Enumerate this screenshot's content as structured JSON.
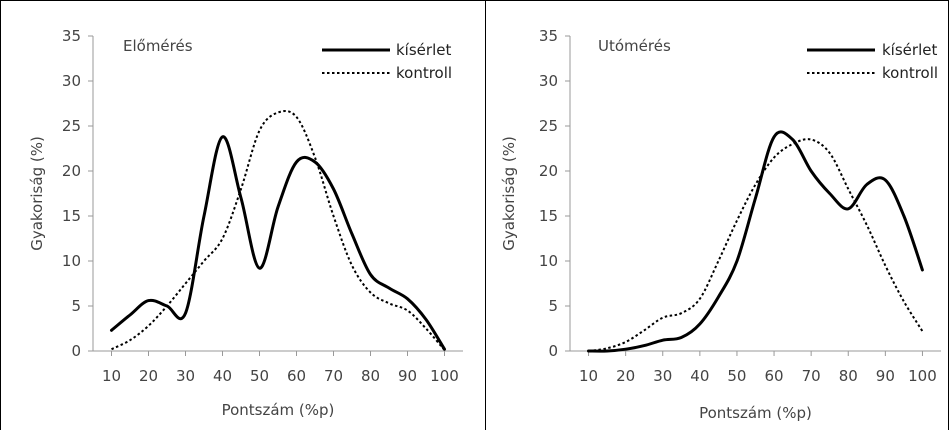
{
  "chart_data": [
    {
      "type": "line",
      "title": "Előmérés",
      "xlabel": "Pontszám (%p)",
      "ylabel": "Gyakoriság (%)",
      "xlim": [
        5,
        105
      ],
      "ylim": [
        0,
        35
      ],
      "x_ticks": [
        "10",
        "20",
        "30",
        "40",
        "50",
        "60",
        "70",
        "80",
        "90",
        "100"
      ],
      "y_ticks": [
        "0",
        "5",
        "10",
        "15",
        "20",
        "25",
        "30",
        "35"
      ],
      "grid": false,
      "legend_position": "top-right",
      "series": [
        {
          "name": "kísérlet",
          "style": "solid",
          "color": "#000000",
          "points": [
            [
              10,
              2.3
            ],
            [
              15,
              4.0
            ],
            [
              20,
              5.6
            ],
            [
              25,
              5.0
            ],
            [
              30,
              4.2
            ],
            [
              35,
              15.0
            ],
            [
              40,
              23.8
            ],
            [
              45,
              17.0
            ],
            [
              50,
              9.2
            ],
            [
              55,
              16.0
            ],
            [
              60,
              21.0
            ],
            [
              65,
              21.0
            ],
            [
              70,
              18.0
            ],
            [
              75,
              13.0
            ],
            [
              80,
              8.5
            ],
            [
              85,
              7.0
            ],
            [
              90,
              5.8
            ],
            [
              95,
              3.5
            ],
            [
              100,
              0.2
            ]
          ]
        },
        {
          "name": "kontroll",
          "style": "dotted",
          "color": "#000000",
          "points": [
            [
              10,
              0.2
            ],
            [
              15,
              1.2
            ],
            [
              20,
              2.8
            ],
            [
              25,
              5.0
            ],
            [
              30,
              7.5
            ],
            [
              35,
              10.0
            ],
            [
              40,
              12.5
            ],
            [
              45,
              18.0
            ],
            [
              50,
              24.5
            ],
            [
              55,
              26.5
            ],
            [
              60,
              26.0
            ],
            [
              65,
              21.5
            ],
            [
              70,
              15.0
            ],
            [
              75,
              9.5
            ],
            [
              80,
              6.5
            ],
            [
              85,
              5.3
            ],
            [
              90,
              4.5
            ],
            [
              95,
              2.5
            ],
            [
              100,
              0.1
            ]
          ]
        }
      ]
    },
    {
      "type": "line",
      "title": "Utómérés",
      "xlabel": "Pontszám (%p)",
      "ylabel": "Gyakoriság (%)",
      "xlim": [
        5,
        105
      ],
      "ylim": [
        0,
        35
      ],
      "x_ticks": [
        "10",
        "20",
        "30",
        "40",
        "50",
        "60",
        "70",
        "80",
        "90",
        "100"
      ],
      "y_ticks": [
        "0",
        "5",
        "10",
        "15",
        "20",
        "25",
        "30",
        "35"
      ],
      "grid": false,
      "legend_position": "top-right",
      "series": [
        {
          "name": "kísérlet",
          "style": "solid",
          "color": "#000000",
          "points": [
            [
              10,
              0.0
            ],
            [
              15,
              0.0
            ],
            [
              20,
              0.2
            ],
            [
              25,
              0.6
            ],
            [
              30,
              1.2
            ],
            [
              35,
              1.5
            ],
            [
              40,
              3.0
            ],
            [
              45,
              6.0
            ],
            [
              50,
              10.0
            ],
            [
              55,
              17.0
            ],
            [
              60,
              23.8
            ],
            [
              65,
              23.5
            ],
            [
              70,
              20.0
            ],
            [
              75,
              17.5
            ],
            [
              80,
              15.8
            ],
            [
              85,
              18.5
            ],
            [
              90,
              19.0
            ],
            [
              95,
              15.0
            ],
            [
              100,
              9.0
            ]
          ]
        },
        {
          "name": "kontroll",
          "style": "dotted",
          "color": "#000000",
          "points": [
            [
              10,
              0.0
            ],
            [
              15,
              0.3
            ],
            [
              20,
              1.0
            ],
            [
              25,
              2.3
            ],
            [
              30,
              3.7
            ],
            [
              35,
              4.2
            ],
            [
              40,
              5.8
            ],
            [
              45,
              10.0
            ],
            [
              50,
              14.5
            ],
            [
              55,
              18.5
            ],
            [
              60,
              21.5
            ],
            [
              65,
              23.0
            ],
            [
              70,
              23.5
            ],
            [
              75,
              22.0
            ],
            [
              80,
              18.0
            ],
            [
              85,
              14.0
            ],
            [
              90,
              9.5
            ],
            [
              95,
              5.5
            ],
            [
              100,
              2.2
            ]
          ]
        }
      ]
    }
  ]
}
